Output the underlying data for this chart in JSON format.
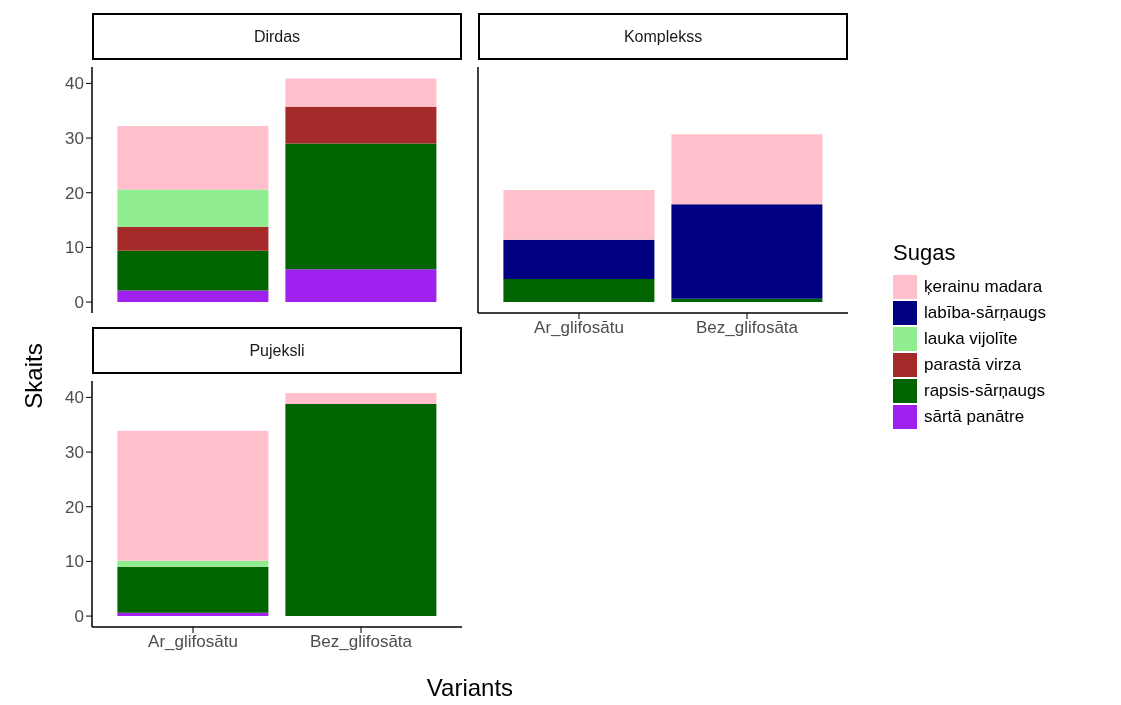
{
  "chart_data": [
    {
      "type": "bar",
      "title": "Dirdas",
      "stacked": true,
      "ylim": [
        -2,
        43
      ],
      "yticks": [
        0,
        10,
        20,
        30,
        40
      ],
      "tick_labels": "y",
      "legend": "right",
      "legend_title": "Sugas",
      "series": [
        {
          "name": "sārtā panātre",
          "color": "#a020f0",
          "values": [
            2.1,
            6.0
          ]
        },
        {
          "name": "rapsis-sārņaugs",
          "color": "#006400",
          "values": [
            7.3,
            23.0
          ]
        },
        {
          "name": "parastā virza",
          "color": "#a52a2a",
          "values": [
            4.4,
            6.7
          ]
        },
        {
          "name": "lauka vijolīte",
          "color": "#90ee90",
          "values": [
            6.8,
            null
          ]
        },
        {
          "name": "labība-sārņaugs",
          "color": "#000080",
          "values": [
            null,
            null
          ]
        },
        {
          "name": "ķerainu madara",
          "color": "#ffc0cb",
          "values": [
            11.6,
            5.2
          ]
        }
      ]
    },
    {
      "type": "bar",
      "title": "Komplekss",
      "categories": [
        "Ar_glifosātu",
        "Bez_glifosāta"
      ],
      "stacked": true,
      "ylim": [
        -2,
        43
      ],
      "yticks": [
        0,
        10,
        20,
        30,
        40
      ],
      "tick_labels": "x",
      "series": [
        {
          "color": "#006400",
          "values": [
            4.2,
            0.6
          ]
        },
        {
          "color": "#000080",
          "values": [
            7.2,
            17.3
          ]
        },
        {
          "color": "#ffc0cb",
          "values": [
            9.1,
            12.8
          ]
        }
      ]
    },
    {
      "type": "bar",
      "title": "Pujeksli",
      "categories": [
        "Ar_glifosātu",
        "Bez_glifosāta"
      ],
      "stacked": true,
      "ylim": [
        -2,
        43
      ],
      "yticks": [
        0,
        10,
        20,
        30,
        40
      ],
      "xlabel": "Variants",
      "ylabel": "Skaits",
      "series": [
        {
          "color": "#a020f0",
          "values": [
            0.6,
            null
          ]
        },
        {
          "color": "#006400",
          "values": [
            8.4,
            38.8
          ]
        },
        {
          "color": "#90ee90",
          "values": [
            1.1,
            null
          ]
        },
        {
          "color": "#ffc0cb",
          "values": [
            23.8,
            2.0
          ]
        }
      ]
    }
  ]
}
